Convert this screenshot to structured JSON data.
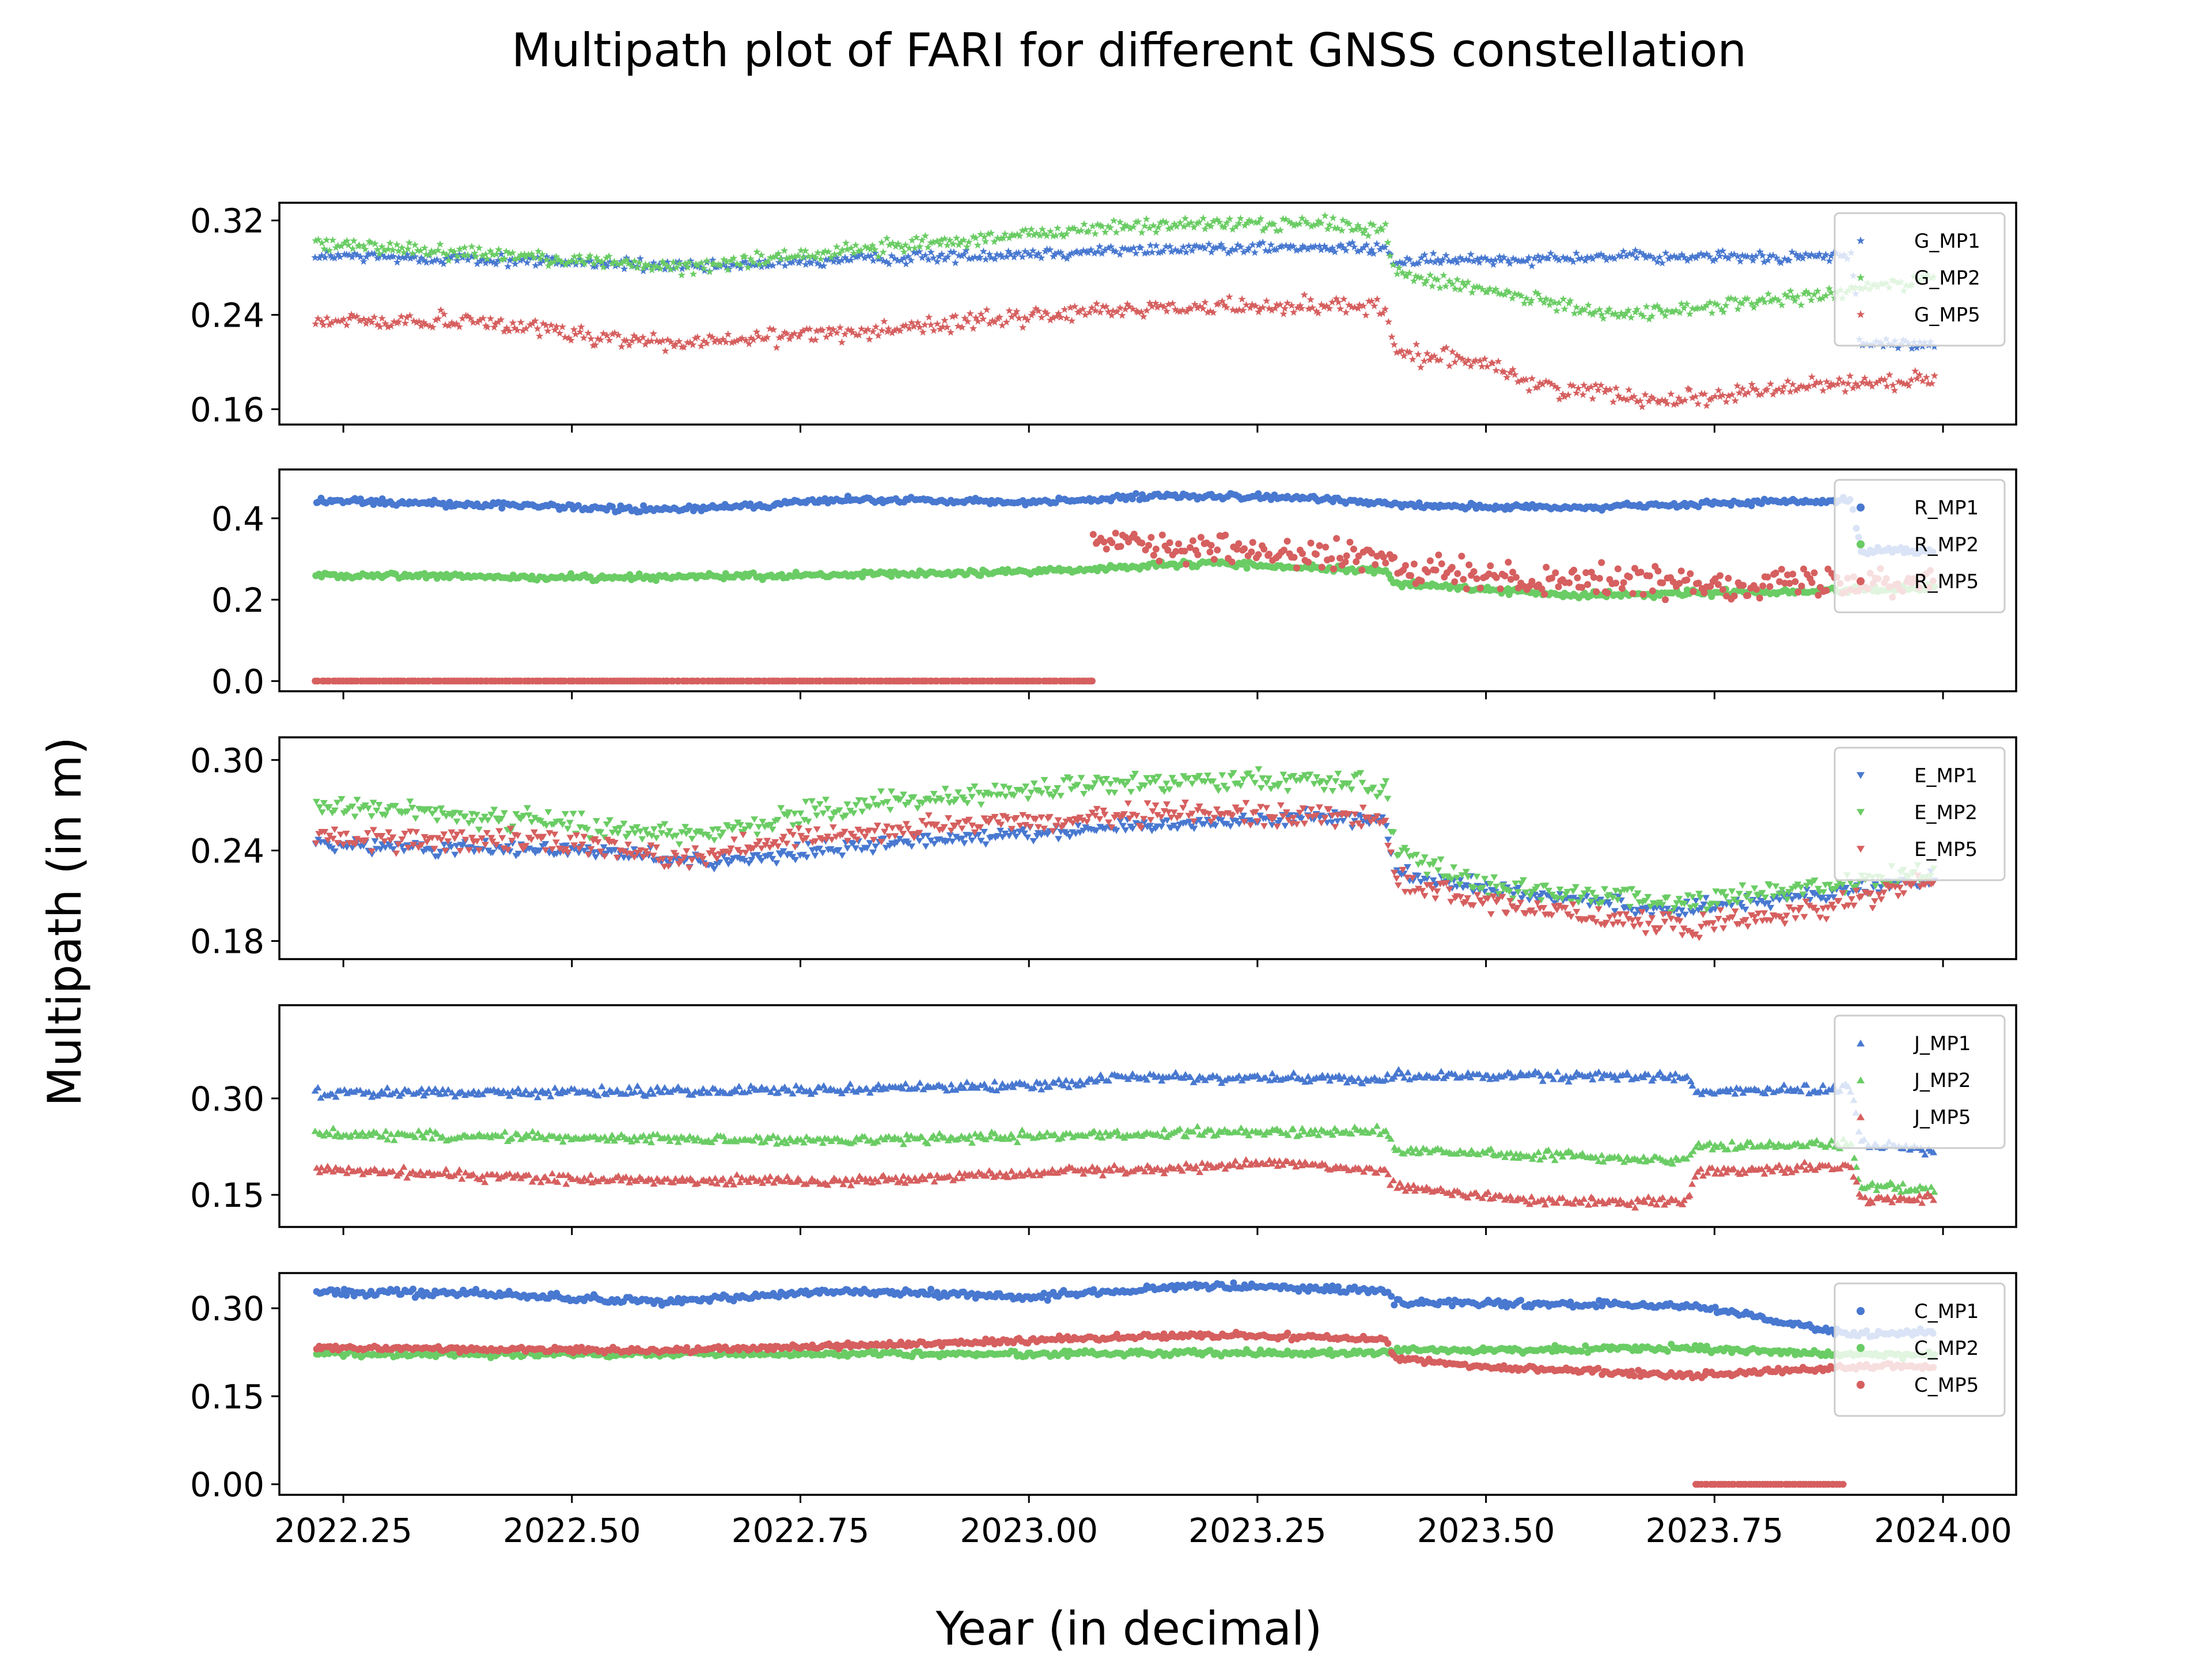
{
  "figure": {
    "title": "Multipath plot of FARI for different GNSS constellation",
    "xlabel": "Year (in decimal)",
    "ylabel": "Multipath (in m)"
  },
  "colors": {
    "MP1": "#4878d0",
    "MP2": "#6acc64",
    "MP5": "#d65f5f"
  },
  "chart_data": [
    {
      "type": "scatter",
      "marker": "star",
      "legend": "top-right",
      "xlim": [
        2022.18,
        2024.08
      ],
      "ylim": [
        0.147,
        0.335
      ],
      "yticks": [
        0.16,
        0.24,
        0.32
      ],
      "ytick_labels": [
        "0.16",
        "0.24",
        "0.32"
      ],
      "xticks": [
        2022.25,
        2022.5,
        2022.75,
        2023.0,
        2023.25,
        2023.5,
        2023.75,
        2024.0
      ],
      "xtick_labels": [],
      "x_range": [
        2022.22,
        2023.99
      ],
      "series": [
        {
          "name": "G_MP1",
          "color_key": "MP1",
          "noise": 0.004,
          "x": [
            2022.22,
            2022.5,
            2022.65,
            2022.75,
            2023.0,
            2023.2,
            2023.39,
            2023.4,
            2023.6,
            2023.9,
            2023.91,
            2023.99
          ],
          "y": [
            0.29,
            0.285,
            0.28,
            0.285,
            0.292,
            0.297,
            0.296,
            0.285,
            0.289,
            0.289,
            0.215,
            0.215
          ]
        },
        {
          "name": "G_MP2",
          "color_key": "MP2",
          "noise": 0.005,
          "x": [
            2022.22,
            2022.45,
            2022.62,
            2022.8,
            2023.1,
            2023.3,
            2023.39,
            2023.4,
            2023.5,
            2023.65,
            2023.85,
            2023.99
          ],
          "y": [
            0.3,
            0.29,
            0.28,
            0.295,
            0.315,
            0.318,
            0.312,
            0.275,
            0.26,
            0.24,
            0.255,
            0.27
          ]
        },
        {
          "name": "G_MP5",
          "color_key": "MP5",
          "noise": 0.006,
          "x": [
            2022.22,
            2022.4,
            2022.52,
            2022.62,
            2022.9,
            2023.1,
            2023.3,
            2023.39,
            2023.4,
            2023.5,
            2023.55,
            2023.7,
            2023.85,
            2023.99
          ],
          "y": [
            0.235,
            0.235,
            0.222,
            0.215,
            0.232,
            0.245,
            0.248,
            0.245,
            0.207,
            0.2,
            0.18,
            0.168,
            0.18,
            0.185
          ]
        }
      ]
    },
    {
      "type": "scatter",
      "marker": "circle",
      "legend": "top-right",
      "xlim": [
        2022.18,
        2024.08
      ],
      "ylim": [
        -0.025,
        0.52
      ],
      "yticks": [
        0.0,
        0.2,
        0.4
      ],
      "ytick_labels": [
        "0.0",
        "0.2",
        "0.4"
      ],
      "xticks": [
        2022.25,
        2022.5,
        2022.75,
        2023.0,
        2023.25,
        2023.5,
        2023.75,
        2024.0
      ],
      "xtick_labels": [],
      "x_range": [
        2022.22,
        2023.99
      ],
      "series": [
        {
          "name": "R_MP1",
          "color_key": "MP1",
          "noise": 0.006,
          "x": [
            2022.22,
            2022.45,
            2022.6,
            2022.8,
            2023.0,
            2023.15,
            2023.3,
            2023.45,
            2023.6,
            2023.8,
            2023.9,
            2023.91,
            2023.99
          ],
          "y": [
            0.445,
            0.43,
            0.42,
            0.445,
            0.44,
            0.455,
            0.45,
            0.43,
            0.425,
            0.44,
            0.445,
            0.32,
            0.32
          ]
        },
        {
          "name": "R_MP2",
          "color_key": "MP2",
          "noise": 0.006,
          "x": [
            2022.22,
            2022.5,
            2022.8,
            2023.0,
            2023.2,
            2023.39,
            2023.4,
            2023.6,
            2023.8,
            2023.99
          ],
          "y": [
            0.26,
            0.255,
            0.26,
            0.27,
            0.29,
            0.27,
            0.24,
            0.21,
            0.22,
            0.23
          ]
        },
        {
          "name": "R_MP5",
          "color_key": "MP5",
          "noise": 0.03,
          "x": [
            2023.07,
            2023.15,
            2023.3,
            2023.39,
            2023.4,
            2023.6,
            2023.8,
            2023.99
          ],
          "y": [
            0.36,
            0.33,
            0.31,
            0.3,
            0.27,
            0.25,
            0.24,
            0.25
          ]
        },
        {
          "name": "R_MP5_zero",
          "color_key": "MP5",
          "noise": 0.0,
          "x": [
            2022.22,
            2023.07
          ],
          "y": [
            0.0,
            0.0
          ]
        }
      ]
    },
    {
      "type": "scatter",
      "marker": "tri_down",
      "legend": "top-right",
      "xlim": [
        2022.18,
        2024.08
      ],
      "ylim": [
        0.168,
        0.315
      ],
      "yticks": [
        0.18,
        0.24,
        0.3
      ],
      "ytick_labels": [
        "0.18",
        "0.24",
        "0.30"
      ],
      "xticks": [
        2022.25,
        2022.5,
        2022.75,
        2023.0,
        2023.25,
        2023.5,
        2023.75,
        2024.0
      ],
      "xtick_labels": [],
      "x_range": [
        2022.22,
        2023.99
      ],
      "series": [
        {
          "name": "E_MP1",
          "color_key": "MP1",
          "noise": 0.004,
          "x": [
            2022.22,
            2022.5,
            2022.65,
            2022.9,
            2023.1,
            2023.3,
            2023.39,
            2023.4,
            2023.5,
            2023.7,
            2023.85,
            2023.99
          ],
          "y": [
            0.243,
            0.24,
            0.232,
            0.248,
            0.255,
            0.262,
            0.26,
            0.225,
            0.215,
            0.2,
            0.21,
            0.22
          ]
        },
        {
          "name": "E_MP2",
          "color_key": "MP2",
          "noise": 0.006,
          "x": [
            2022.22,
            2022.45,
            2022.62,
            2022.8,
            2023.0,
            2023.2,
            2023.39,
            2023.4,
            2023.5,
            2023.72,
            2023.85,
            2023.99
          ],
          "y": [
            0.27,
            0.26,
            0.25,
            0.268,
            0.28,
            0.288,
            0.285,
            0.24,
            0.215,
            0.205,
            0.215,
            0.225
          ]
        },
        {
          "name": "E_MP5",
          "color_key": "MP5",
          "noise": 0.006,
          "x": [
            2022.22,
            2022.5,
            2022.62,
            2022.8,
            2023.0,
            2023.2,
            2023.39,
            2023.4,
            2023.5,
            2023.72,
            2023.85,
            2023.99
          ],
          "y": [
            0.248,
            0.245,
            0.235,
            0.252,
            0.258,
            0.265,
            0.262,
            0.22,
            0.205,
            0.188,
            0.2,
            0.22
          ]
        }
      ]
    },
    {
      "type": "scatter",
      "marker": "tri_up",
      "legend": "top-right",
      "xlim": [
        2022.18,
        2024.08
      ],
      "ylim": [
        0.1,
        0.445
      ],
      "yticks": [
        0.15,
        0.3
      ],
      "ytick_labels": [
        "0.15",
        "0.30"
      ],
      "xticks": [
        2022.25,
        2022.5,
        2022.75,
        2023.0,
        2023.25,
        2023.5,
        2023.75,
        2024.0
      ],
      "xtick_labels": [],
      "x_range": [
        2022.22,
        2023.99
      ],
      "series": [
        {
          "name": "J_MP1",
          "color_key": "MP1",
          "noise": 0.006,
          "x": [
            2022.22,
            2022.5,
            2022.8,
            2023.0,
            2023.08,
            2023.1,
            2023.39,
            2023.4,
            2023.72,
            2023.73,
            2023.9,
            2023.91,
            2023.99
          ],
          "y": [
            0.31,
            0.31,
            0.315,
            0.32,
            0.33,
            0.335,
            0.33,
            0.335,
            0.335,
            0.31,
            0.315,
            0.23,
            0.22
          ]
        },
        {
          "name": "J_MP2",
          "color_key": "MP2",
          "noise": 0.006,
          "x": [
            2022.22,
            2022.5,
            2022.8,
            2023.1,
            2023.39,
            2023.4,
            2023.6,
            2023.72,
            2023.73,
            2023.9,
            2023.91,
            2023.99
          ],
          "y": [
            0.245,
            0.24,
            0.235,
            0.245,
            0.25,
            0.22,
            0.21,
            0.205,
            0.225,
            0.23,
            0.165,
            0.16
          ]
        },
        {
          "name": "J_MP5",
          "color_key": "MP5",
          "noise": 0.006,
          "x": [
            2022.22,
            2022.5,
            2022.8,
            2023.1,
            2023.3,
            2023.39,
            2023.4,
            2023.55,
            2023.72,
            2023.73,
            2023.9,
            2023.91,
            2023.99
          ],
          "y": [
            0.19,
            0.175,
            0.172,
            0.19,
            0.2,
            0.185,
            0.165,
            0.14,
            0.14,
            0.185,
            0.195,
            0.145,
            0.145
          ]
        }
      ]
    },
    {
      "type": "scatter",
      "marker": "circle",
      "legend": "top-right",
      "xlim": [
        2022.18,
        2024.08
      ],
      "ylim": [
        -0.018,
        0.36
      ],
      "yticks": [
        0.0,
        0.15,
        0.3
      ],
      "ytick_labels": [
        "0.00",
        "0.15",
        "0.30"
      ],
      "xticks": [
        2022.25,
        2022.5,
        2022.75,
        2023.0,
        2023.25,
        2023.5,
        2023.75,
        2024.0
      ],
      "xtick_labels": [
        "2022.25",
        "2022.50",
        "2022.75",
        "2023.00",
        "2023.25",
        "2023.50",
        "2023.75",
        "2024.00"
      ],
      "x_range": [
        2022.22,
        2023.72
      ],
      "series": [
        {
          "name": "C_MP1",
          "color_key": "MP1",
          "noise": 0.005,
          "x": [
            2022.22,
            2022.4,
            2022.6,
            2022.8,
            2023.0,
            2023.2,
            2023.39,
            2023.4,
            2023.72,
            2023.9,
            2023.99
          ],
          "y": [
            0.328,
            0.325,
            0.31,
            0.33,
            0.32,
            0.338,
            0.33,
            0.31,
            0.305,
            0.255,
            0.26
          ]
        },
        {
          "name": "C_MP2",
          "color_key": "MP2",
          "noise": 0.004,
          "x": [
            2022.22,
            2022.6,
            2023.0,
            2023.39,
            2023.4,
            2023.72,
            2023.9,
            2023.99
          ],
          "y": [
            0.222,
            0.222,
            0.222,
            0.225,
            0.228,
            0.232,
            0.22,
            0.22
          ]
        },
        {
          "name": "C_MP5",
          "color_key": "MP5",
          "noise": 0.004,
          "x": [
            2022.22,
            2022.6,
            2023.0,
            2023.2,
            2023.39,
            2023.4,
            2023.5,
            2023.72,
            2023.9,
            2023.99
          ],
          "y": [
            0.232,
            0.228,
            0.245,
            0.255,
            0.248,
            0.215,
            0.2,
            0.185,
            0.2,
            0.2
          ]
        },
        {
          "name": "C_MP5_zero",
          "color_key": "MP5",
          "noise": 0.0,
          "x": [
            2023.73,
            2023.89
          ],
          "y": [
            0.0,
            0.0
          ]
        }
      ]
    }
  ],
  "legends": [
    [
      "G_MP1",
      "G_MP2",
      "G_MP5"
    ],
    [
      "R_MP1",
      "R_MP2",
      "R_MP5"
    ],
    [
      "E_MP1",
      "E_MP2",
      "E_MP5"
    ],
    [
      "J_MP1",
      "J_MP2",
      "J_MP5"
    ],
    [
      "C_MP1",
      "C_MP2",
      "C_MP5"
    ]
  ]
}
